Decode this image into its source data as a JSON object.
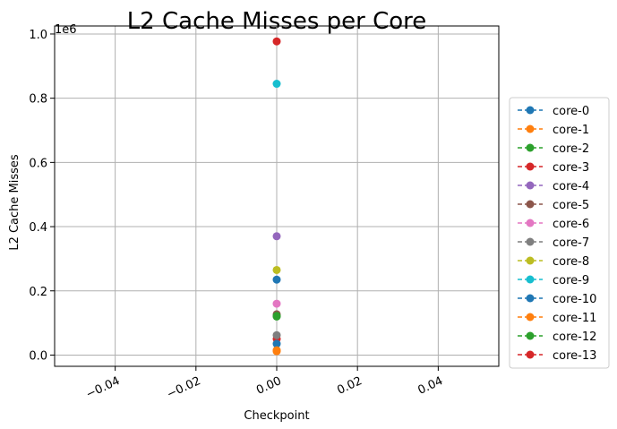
{
  "chart_data": {
    "type": "scatter",
    "title": "L2 Cache Misses per Core",
    "xlabel": "Checkpoint",
    "ylabel": "L2 Cache Misses",
    "y_offset_text": "1e6",
    "xlim": [
      -0.055,
      0.055
    ],
    "ylim": [
      -35000,
      1025000
    ],
    "x_ticks": [
      -0.04,
      -0.02,
      0.0,
      0.02,
      0.04
    ],
    "x_tick_labels": [
      "−0.04",
      "−0.02",
      "0.00",
      "0.02",
      "0.04"
    ],
    "y_ticks": [
      0,
      200000,
      400000,
      600000,
      800000,
      1000000
    ],
    "y_tick_labels": [
      "0.0",
      "0.2",
      "0.4",
      "0.6",
      "0.8",
      "1.0"
    ],
    "grid": true,
    "legend_position": "right",
    "line_style": "dashed",
    "marker": "circle",
    "series": [
      {
        "name": "core-0",
        "color": "#1f77b4",
        "x": [
          0.0
        ],
        "y": [
          235000
        ]
      },
      {
        "name": "core-1",
        "color": "#ff7f0e",
        "x": [
          0.0
        ],
        "y": [
          12000
        ]
      },
      {
        "name": "core-2",
        "color": "#2ca02c",
        "x": [
          0.0
        ],
        "y": [
          120000
        ]
      },
      {
        "name": "core-3",
        "color": "#d62728",
        "x": [
          0.0
        ],
        "y": [
          50000
        ]
      },
      {
        "name": "core-4",
        "color": "#9467bd",
        "x": [
          0.0
        ],
        "y": [
          370000
        ]
      },
      {
        "name": "core-5",
        "color": "#8c564b",
        "x": [
          0.0
        ],
        "y": [
          127000
        ]
      },
      {
        "name": "core-6",
        "color": "#e377c2",
        "x": [
          0.0
        ],
        "y": [
          160000
        ]
      },
      {
        "name": "core-7",
        "color": "#7f7f7f",
        "x": [
          0.0
        ],
        "y": [
          62000
        ]
      },
      {
        "name": "core-8",
        "color": "#bcbd22",
        "x": [
          0.0
        ],
        "y": [
          265000
        ]
      },
      {
        "name": "core-9",
        "color": "#17becf",
        "x": [
          0.0
        ],
        "y": [
          845000
        ]
      },
      {
        "name": "core-10",
        "color": "#1f77b4",
        "x": [
          0.0
        ],
        "y": [
          35000
        ]
      },
      {
        "name": "core-11",
        "color": "#ff7f0e",
        "x": [
          0.0
        ],
        "y": [
          15000
        ]
      },
      {
        "name": "core-12",
        "color": "#2ca02c",
        "x": [
          0.0
        ],
        "y": [
          122000
        ]
      },
      {
        "name": "core-13",
        "color": "#d62728",
        "x": [
          0.0
        ],
        "y": [
          977000
        ]
      }
    ]
  }
}
